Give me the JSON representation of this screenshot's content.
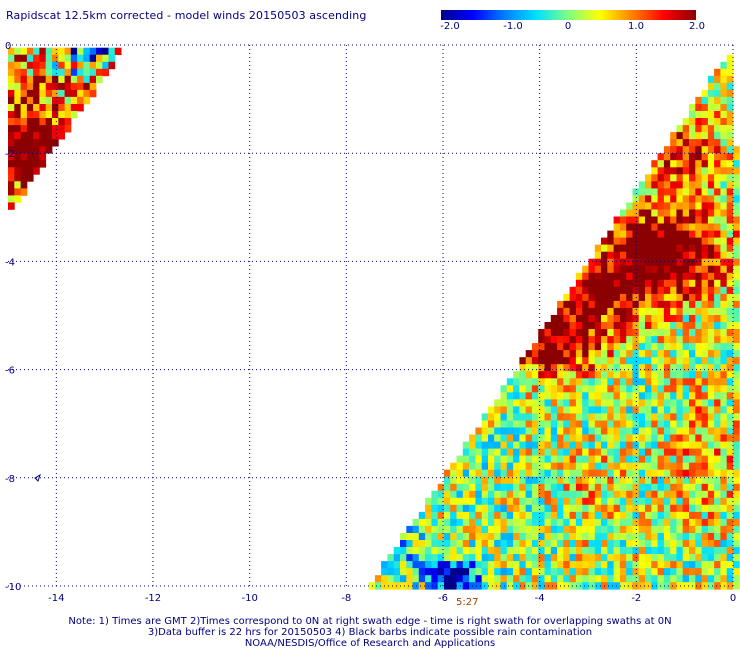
{
  "header": {
    "title": "Rapidscat 12.5km corrected - model winds 20150503 ascending"
  },
  "colorbar": {
    "labels": [
      "-2.0",
      "-1.0",
      "0",
      "1.0",
      "2.0"
    ],
    "colors": [
      "#00008c",
      "#0000ff",
      "#0080ff",
      "#00e0ff",
      "#80ff80",
      "#ffff00",
      "#ff8000",
      "#ff0000",
      "#8b0000"
    ]
  },
  "time_label": "5:27",
  "notes": [
    "Note: 1) Times are GMT 2)Times correspond to 0N at right swath edge - time is right swath for overlapping swaths at 0N",
    "3)Data buffer is 22 hrs for 20150503 4) Black barbs indicate possible rain contamination",
    "NOAA/NESDIS/Office of Research and Applications"
  ],
  "chart_data": {
    "type": "heatmap",
    "title": "Rapidscat 12.5km corrected - model winds 20150503 ascending",
    "value_range": [
      -2.0,
      2.0
    ],
    "xlim": [
      -15,
      0
    ],
    "ylim": [
      -10,
      0
    ],
    "x_ticks": [
      "-14",
      "-12",
      "-10",
      "-8",
      "-6",
      "-4",
      "-2",
      "0"
    ],
    "x_tick_values": [
      -14,
      -12,
      -10,
      -8,
      -6,
      -4,
      -2,
      0
    ],
    "y_ticks": [
      "0",
      "-2",
      "-4",
      "-6",
      "-8",
      "-10"
    ],
    "y_tick_values": [
      0,
      -2,
      -4,
      -6,
      -8,
      -10
    ],
    "grid": true,
    "regions": [
      {
        "name": "main swath",
        "lon_range": [
          -7.5,
          0
        ],
        "lat_range": [
          -10,
          -0.05
        ]
      },
      {
        "name": "upper-left swath",
        "lon_range": [
          -15,
          -12.7
        ],
        "lat_range": [
          -3.0,
          -0.05
        ]
      }
    ],
    "features": [
      {
        "description": "large positive difference area",
        "lon": -1.5,
        "lat": -4.0,
        "value": 2.0
      },
      {
        "description": "strong positive band",
        "lon": -4.0,
        "lat": -5.6,
        "value": 1.8
      },
      {
        "description": "strong positive cluster",
        "lon": -14.5,
        "lat": -1.9,
        "value": 2.0
      },
      {
        "description": "negative area",
        "lon": -5.8,
        "lat": -9.8,
        "value": -2.0
      }
    ],
    "annotation": {
      "text": "5:27",
      "lon": -5.8
    }
  }
}
